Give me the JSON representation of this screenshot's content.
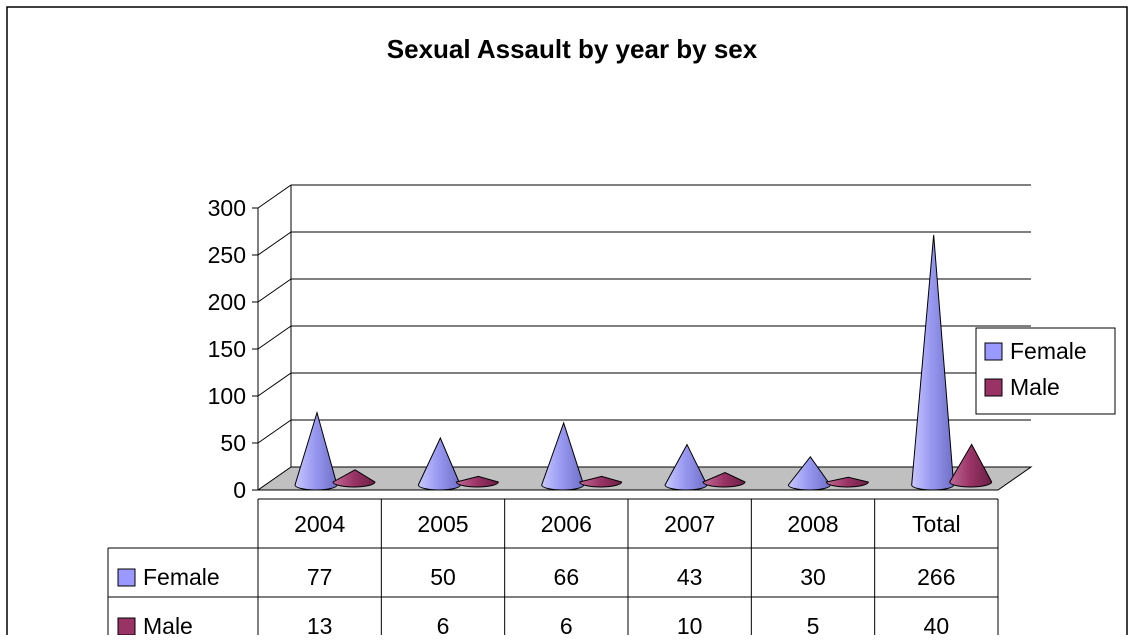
{
  "chart_data": {
    "type": "bar",
    "title": "Sexual Assault by year by sex",
    "xlabel": "",
    "ylabel": "",
    "categories": [
      "2004",
      "2005",
      "2006",
      "2007",
      "2008",
      "Total"
    ],
    "series": [
      {
        "name": "Female",
        "values": [
          77,
          50,
          66,
          43,
          30,
          266
        ],
        "color": "#9999ff"
      },
      {
        "name": "Male",
        "values": [
          13,
          6,
          6,
          10,
          5,
          40
        ],
        "color": "#993366"
      }
    ],
    "ylim": [
      0,
      300
    ],
    "yticks": [
      "0",
      "50",
      "100",
      "150",
      "200",
      "250",
      "300"
    ],
    "grid": true,
    "legend": "right",
    "floor_color": "#c0c0c0",
    "data_table": true
  }
}
